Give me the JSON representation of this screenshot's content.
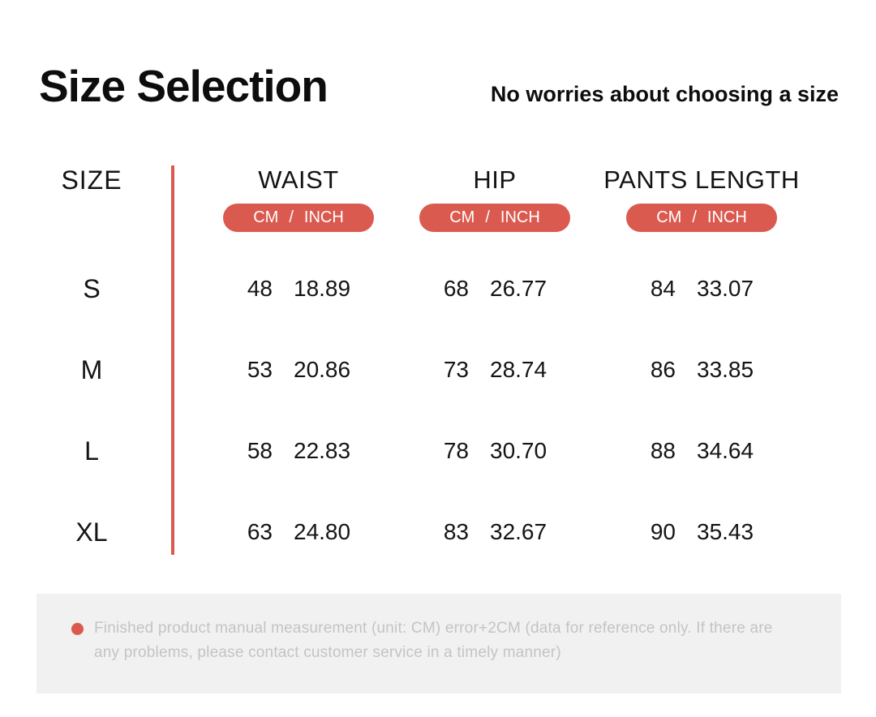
{
  "page": {
    "title": "Size Selection",
    "subtitle": "No worries about choosing a size"
  },
  "colors": {
    "accent_red": "#DB5A4F",
    "footnote_bg": "#F1F1F1",
    "footnote_text": "#C4C4C4",
    "text_dark": "#141414"
  },
  "table": {
    "size_header": "SIZE",
    "unit_badge": {
      "cm": "CM",
      "separator": "/",
      "inch": "INCH"
    },
    "measure_columns": [
      "WAIST",
      "HIP",
      "PANTS LENGTH"
    ],
    "rows": [
      {
        "size": "S",
        "waist_cm": "48",
        "waist_inch": "18.89",
        "hip_cm": "68",
        "hip_inch": "26.77",
        "pants_cm": "84",
        "pants_inch": "33.07"
      },
      {
        "size": "M",
        "waist_cm": "53",
        "waist_inch": "20.86",
        "hip_cm": "73",
        "hip_inch": "28.74",
        "pants_cm": "86",
        "pants_inch": "33.85"
      },
      {
        "size": "L",
        "waist_cm": "58",
        "waist_inch": "22.83",
        "hip_cm": "78",
        "hip_inch": "30.70",
        "pants_cm": "88",
        "pants_inch": "34.64"
      },
      {
        "size": "XL",
        "waist_cm": "63",
        "waist_inch": "24.80",
        "hip_cm": "83",
        "hip_inch": "32.67",
        "pants_cm": "90",
        "pants_inch": "35.43"
      }
    ]
  },
  "footnote": "Finished product manual measurement (unit: CM) error+2CM (data for reference only. If there are any problems, please contact customer service in a timely manner)",
  "chart_data": {
    "type": "table",
    "title": "Size Selection",
    "columns": [
      "SIZE",
      "WAIST CM",
      "WAIST INCH",
      "HIP CM",
      "HIP INCH",
      "PANTS LENGTH CM",
      "PANTS LENGTH INCH"
    ],
    "rows": [
      [
        "S",
        48,
        18.89,
        68,
        26.77,
        84,
        33.07
      ],
      [
        "M",
        53,
        20.86,
        73,
        28.74,
        86,
        33.85
      ],
      [
        "L",
        58,
        22.83,
        78,
        30.7,
        88,
        34.64
      ],
      [
        "XL",
        63,
        24.8,
        83,
        32.67,
        90,
        35.43
      ]
    ],
    "notes": "Finished product manual measurement (unit: CM) error+2CM (data for reference only. If there are any problems, please contact customer service in a timely manner)"
  }
}
